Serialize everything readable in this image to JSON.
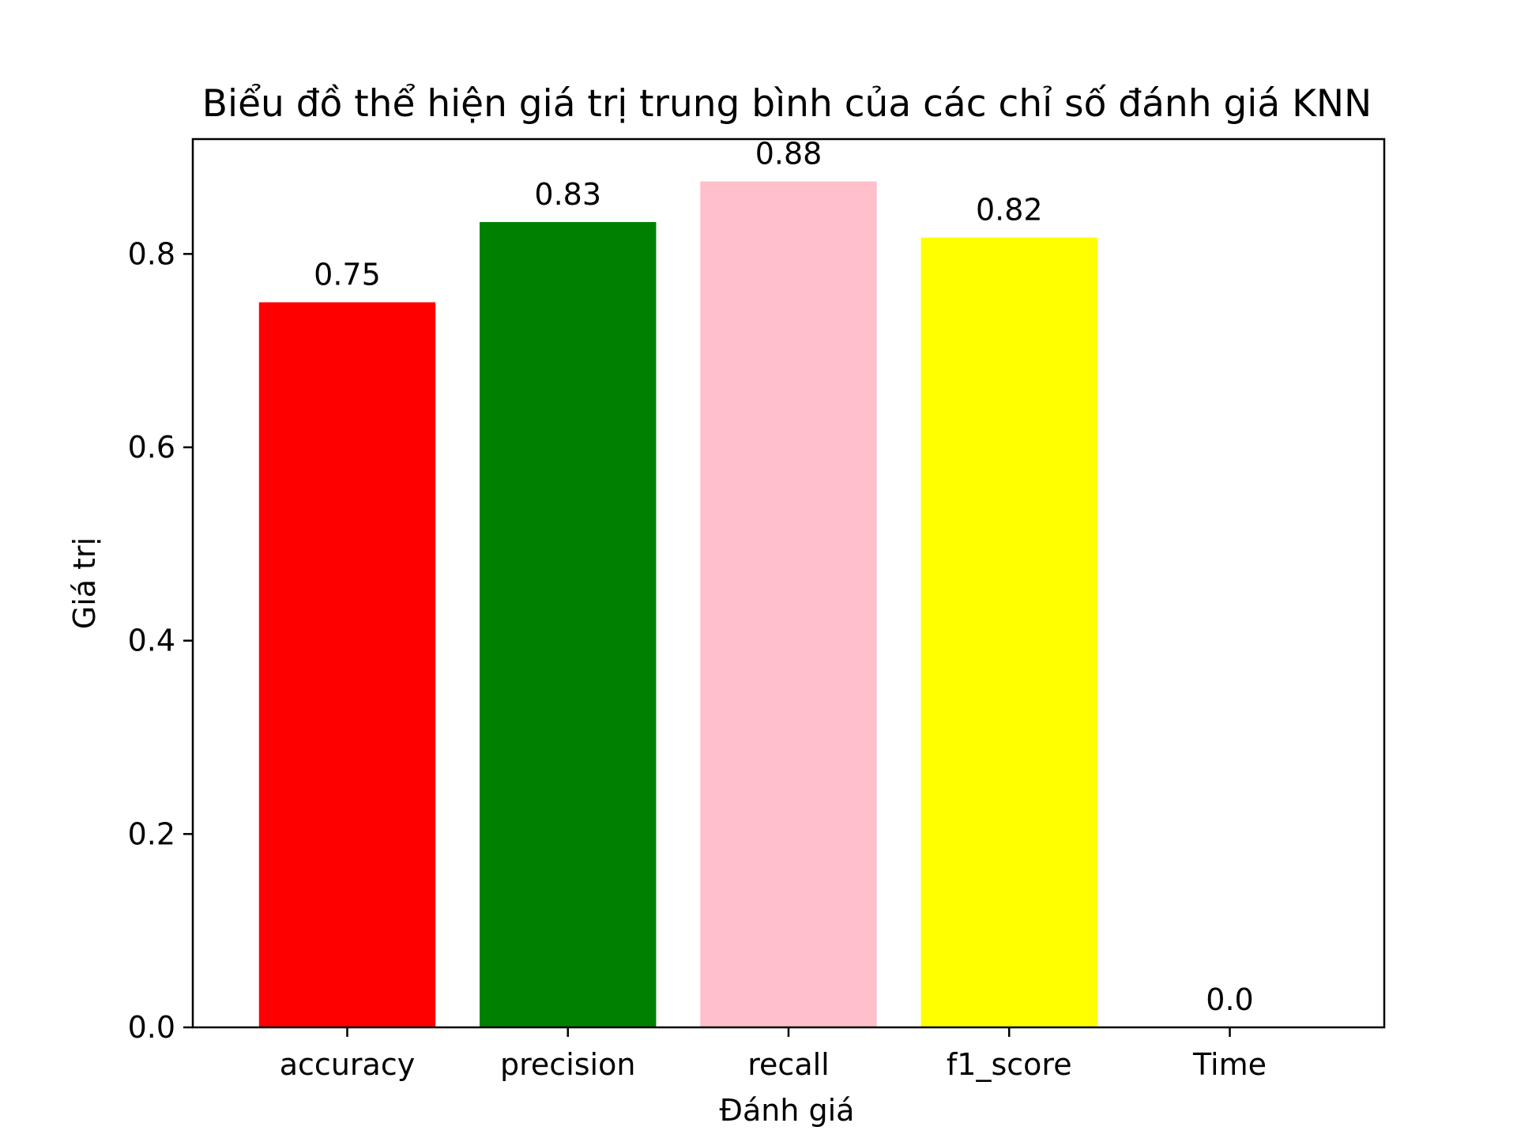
{
  "chart_data": {
    "type": "bar",
    "title": "Biểu đồ thể hiện giá trị trung bình của các chỉ số đánh giá KNN",
    "xlabel": "Đánh giá",
    "ylabel": "Giá trị",
    "categories": [
      "accuracy",
      "precision",
      "recall",
      "f1_score",
      "Time"
    ],
    "values": [
      0.75,
      0.833,
      0.875,
      0.817,
      0.0
    ],
    "data_labels": [
      "0.75",
      "0.83",
      "0.88",
      "0.82",
      "0.0"
    ],
    "colors": [
      "#ff0000",
      "#008000",
      "#ffc0cb",
      "#ffff00",
      "#000000"
    ],
    "ylim": [
      0,
      0.9188
    ],
    "yticks": [
      0.0,
      0.2,
      0.4,
      0.6,
      0.8
    ],
    "ytick_labels": [
      "0.0",
      "0.2",
      "0.4",
      "0.6",
      "0.8"
    ],
    "grid": false,
    "legend": "none"
  }
}
